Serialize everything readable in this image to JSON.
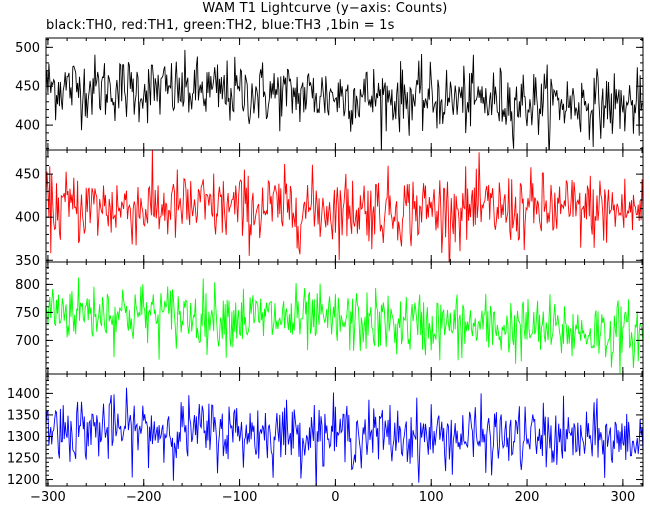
{
  "title": "WAM T1 Lightcurve (y−axis: Counts)",
  "subtitle": "black:TH0, red:TH1, green:TH2, blue:TH3 ,1bin = 1s",
  "chart_data": {
    "type": "line",
    "x_range": [
      -302,
      321
    ],
    "x_ticks": [
      -300,
      -200,
      -100,
      0,
      100,
      200,
      300
    ],
    "x_tick_labels": [
      "−300",
      "−200",
      "−100",
      "0",
      "100",
      "200",
      "300"
    ],
    "panels": [
      {
        "name": "TH0",
        "color": "#000000",
        "ylim": [
          368,
          512
        ],
        "y_ticks": [
          400,
          450,
          500
        ],
        "y_tick_labels": [
          "400",
          "450",
          "500"
        ],
        "mean_start": 450,
        "mean_end": 425,
        "noise": 21
      },
      {
        "name": "TH1",
        "color": "#ff0000",
        "ylim": [
          348,
          478
        ],
        "y_ticks": [
          350,
          400,
          450
        ],
        "y_tick_labels": [
          "350",
          "400",
          "450"
        ],
        "mean_start": 412,
        "mean_end": 408,
        "noise": 21
      },
      {
        "name": "TH2",
        "color": "#00ff00",
        "ylim": [
          640,
          840
        ],
        "y_ticks": [
          700,
          750,
          800
        ],
        "y_tick_labels": [
          "700",
          "750",
          "800"
        ],
        "mean_start": 755,
        "mean_end": 712,
        "noise": 28
      },
      {
        "name": "TH3",
        "color": "#0000ff",
        "ylim": [
          1185,
          1445
        ],
        "y_ticks": [
          1200,
          1250,
          1300,
          1350,
          1400
        ],
        "y_tick_labels": [
          "1200",
          "1250",
          "1300",
          "1350",
          "1400"
        ],
        "mean_start": 1320,
        "mean_end": 1290,
        "noise": 37
      }
    ]
  }
}
